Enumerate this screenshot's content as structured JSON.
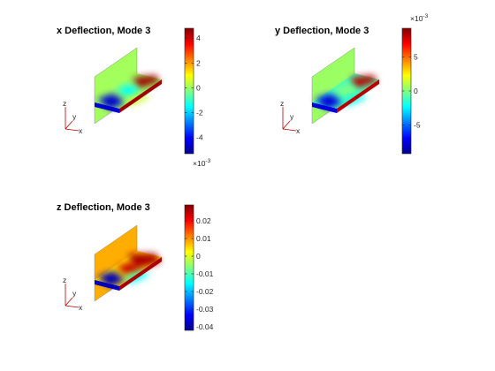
{
  "chart_data": [
    {
      "type": "heatmap",
      "title": "x Deflection, Mode 3",
      "colormap": "jet",
      "colorbar": {
        "clim": [
          -0.0053,
          0.0048
        ],
        "ticks": [
          4,
          2,
          0,
          -2,
          -4
        ],
        "tick_labels": [
          "4",
          "2",
          "0",
          "-2",
          "-4"
        ],
        "multiplier": "×10",
        "exponent": "-3",
        "multiplier_position": "bottom"
      },
      "triad": {
        "labels": [
          "z",
          "y",
          "x"
        ]
      },
      "field": {
        "wall": 0.0001,
        "plate_front": -0.0045,
        "plate_back": 0.0045,
        "plate_back_blob": -0.0015,
        "plate_front_right": 0.0005,
        "plate_mid": 0.0
      }
    },
    {
      "type": "heatmap",
      "title": "y Deflection, Mode 3",
      "colormap": "jet",
      "colorbar": {
        "clim": [
          -0.0092,
          0.0092
        ],
        "ticks": [
          5,
          0,
          -5
        ],
        "tick_labels": [
          "5",
          "0",
          "-5"
        ],
        "multiplier": "×10",
        "exponent": "-3",
        "multiplier_position": "top"
      },
      "triad": {
        "labels": [
          "z",
          "y",
          "x"
        ]
      },
      "field": {
        "wall": 0.0005,
        "plate_front": -0.0075,
        "plate_back": 0.0082,
        "plate_back_blob": 0.0,
        "plate_front_right": -0.002,
        "plate_mid": -0.001
      }
    },
    {
      "type": "heatmap",
      "title": "z Deflection, Mode 3",
      "colormap": "jet",
      "colorbar": {
        "clim": [
          -0.042,
          0.029
        ],
        "ticks": [
          0.02,
          0.01,
          0,
          -0.01,
          -0.02,
          -0.03,
          -0.04
        ],
        "tick_labels": [
          "0.02",
          "0.01",
          "0",
          "-0.01",
          "-0.02",
          "-0.03",
          "-0.04"
        ],
        "multiplier": "",
        "exponent": "",
        "multiplier_position": "none"
      },
      "triad": {
        "labels": [
          "z",
          "y",
          "x"
        ]
      },
      "field": {
        "wall": 0.008,
        "plate_front": -0.038,
        "plate_back": 0.026,
        "plate_back_blob": 0.024,
        "plate_front_right": -0.015,
        "plate_mid": 0.005
      }
    }
  ]
}
